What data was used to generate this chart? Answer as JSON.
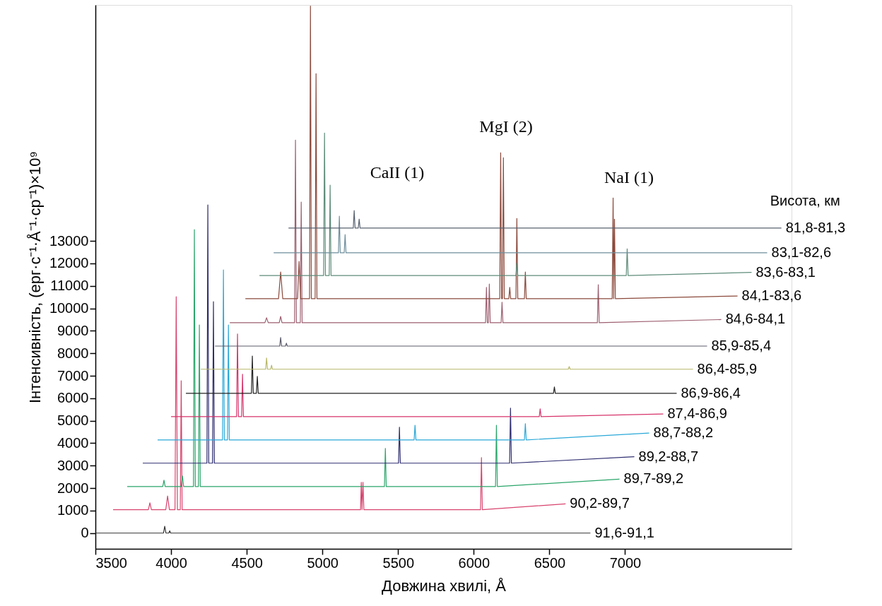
{
  "chart_data": {
    "type": "line",
    "xlabel": "Довжина хвилі, Å",
    "ylabel": "Інтенсивність, (ерг·с⁻¹·Å⁻¹·ср⁻¹)×10⁹",
    "legend_title": "Висота, км",
    "xlim": [
      3500,
      8100
    ],
    "xticks": [
      3500,
      4000,
      4500,
      5000,
      5500,
      6000,
      6500,
      7000
    ],
    "ylim": [
      -700,
      23500
    ],
    "yticks": [
      0,
      1000,
      2000,
      3000,
      4000,
      5000,
      6000,
      7000,
      8000,
      9000,
      10000,
      11000,
      12000,
      13000
    ],
    "grid": false,
    "marker": "none",
    "line_style": "solid",
    "annotations": [
      "CaII (1)",
      "MgI (2)",
      "NaI (1)"
    ],
    "series": [
      {
        "name": "91,6-91,1",
        "color": "#333333",
        "x": [
          3500,
          3950,
          3958,
          3966,
          3985,
          3991,
          3997,
          6771
        ],
        "values": [
          0,
          0,
          300,
          0,
          0,
          100,
          0,
          0
        ]
      },
      {
        "name": "90,2-89,7",
        "color": "#d8436e",
        "x": [
          3617,
          3850,
          3860,
          3870,
          3965,
          3977,
          3989,
          4026,
          4034,
          4042,
          4061,
          4067,
          4073,
          5252,
          5257,
          5262,
          5268,
          5274,
          6045,
          6051,
          6057,
          6607
        ],
        "values": [
          1040,
          1040,
          1350,
          1040,
          1040,
          1650,
          1040,
          1040,
          10520,
          1040,
          1040,
          6780,
          1040,
          1040,
          2260,
          1040,
          2260,
          1040,
          1040,
          3360,
          1040,
          1300
        ]
      },
      {
        "name": "89,7-89,2",
        "color": "#2aa56a",
        "x": [
          3710,
          3945,
          3953,
          3961,
          4067,
          4075,
          4083,
          4148,
          4154,
          4160,
          4181,
          4187,
          4193,
          5410,
          5416,
          5422,
          6144,
          6150,
          6156,
          6963
        ],
        "values": [
          2070,
          2070,
          2355,
          2070,
          2070,
          2540,
          2070,
          2070,
          13500,
          2070,
          2070,
          9260,
          2070,
          2070,
          3770,
          2070,
          2070,
          4800,
          2070,
          2400
        ]
      },
      {
        "name": "89,2-88,7",
        "color": "#2e2d70",
        "x": [
          3813,
          4237,
          4243,
          4249,
          4274,
          4280,
          4286,
          5503,
          5509,
          5515,
          6237,
          6243,
          6249,
          7061
        ],
        "values": [
          3110,
          3110,
          14600,
          3110,
          3110,
          10300,
          3110,
          3110,
          4710,
          3110,
          3110,
          5560,
          3110,
          3400
        ]
      },
      {
        "name": "88,7-88,2",
        "color": "#2aa8d8",
        "x": [
          3911,
          4340,
          4346,
          4352,
          4373,
          4379,
          4385,
          5606,
          5612,
          5618,
          6335,
          6341,
          6347,
          7159
        ],
        "values": [
          4145,
          4145,
          11710,
          4145,
          4145,
          9260,
          4145,
          4145,
          4800,
          4145,
          4145,
          4870,
          4145,
          4450
        ]
      },
      {
        "name": "87,4-86,9",
        "color": "#d6336b",
        "x": [
          4000,
          4433,
          4439,
          4445,
          4466,
          4472,
          4478,
          6433,
          6439,
          6445,
          7252
        ],
        "values": [
          5180,
          5180,
          8860,
          5180,
          5180,
          7070,
          5180,
          5180,
          5530,
          5180,
          5300
        ]
      },
      {
        "name": "86,9-86,4",
        "color": "#222222",
        "x": [
          4098,
          4531,
          4537,
          4543,
          4564,
          4570,
          4576,
          6527,
          6533,
          6539,
          7341
        ],
        "values": [
          6220,
          6220,
          7880,
          6220,
          6220,
          6970,
          6220,
          6220,
          6500,
          6220,
          6220
        ]
      },
      {
        "name": "86,4-85,9",
        "color": "#b8b86a",
        "x": [
          4196,
          4625,
          4631,
          4637,
          4658,
          4664,
          4670,
          6625,
          6631,
          6637,
          7449
        ],
        "values": [
          7290,
          7290,
          7790,
          7290,
          7290,
          7470,
          7290,
          7290,
          7410,
          7290,
          7290
        ]
      },
      {
        "name": "85,9-85,4",
        "color": "#5a5a6a",
        "x": [
          4290,
          4718,
          4724,
          4730,
          4756,
          4762,
          4768,
          7542
        ],
        "values": [
          8320,
          8320,
          8700,
          8320,
          8320,
          8450,
          8320,
          8320
        ]
      },
      {
        "name": "84,6-84,1",
        "color": "#9c5f70",
        "x": [
          4388,
          4620,
          4631,
          4642,
          4715,
          4724,
          4733,
          4816,
          4822,
          4828,
          4854,
          4860,
          4866,
          6078,
          6084,
          6090,
          6097,
          6103,
          6109,
          6181,
          6187,
          6193,
          6817,
          6823,
          6829,
          7636
        ],
        "values": [
          9360,
          9360,
          9580,
          9360,
          9360,
          9640,
          9360,
          9360,
          17490,
          9360,
          9360,
          14730,
          9360,
          9360,
          10930,
          9360,
          9360,
          11080,
          9360,
          9360,
          10270,
          9360,
          9360,
          11050,
          9360,
          9500
        ]
      },
      {
        "name": "84,1-83,6",
        "color": "#8b4a3c",
        "x": [
          4491,
          4710,
          4724,
          4738,
          4836,
          4846,
          4856,
          4915,
          4921,
          4927,
          4952,
          4958,
          4964,
          6172,
          6178,
          6184,
          6190,
          6196,
          6202,
          6232,
          6238,
          6244,
          6279,
          6285,
          6291,
          6335,
          6341,
          6347,
          6915,
          6921,
          6925,
          6930,
          6936,
          7743
        ],
        "values": [
          10430,
          10430,
          11620,
          10430,
          10430,
          12090,
          10430,
          10430,
          23450,
          10430,
          10430,
          20440,
          10430,
          10430,
          16920,
          10430,
          10430,
          16700,
          10430,
          10430,
          10930,
          10430,
          10430,
          14000,
          10430,
          10430,
          11620,
          10430,
          10430,
          14910,
          10430,
          13970,
          10430,
          10550
        ]
      },
      {
        "name": "83,6-83,1",
        "color": "#5e8c7a",
        "x": [
          4584,
          5008,
          5014,
          5020,
          5045,
          5051,
          5057,
          6279,
          6285,
          6291,
          7008,
          7014,
          7020,
          7836
        ],
        "values": [
          11460,
          11460,
          17800,
          11460,
          11460,
          15480,
          11460,
          11460,
          12000,
          11460,
          11460,
          12650,
          11460,
          11600
        ]
      },
      {
        "name": "83,1-82,6",
        "color": "#6d8e9c",
        "x": [
          4678,
          5106,
          5112,
          5118,
          5144,
          5150,
          5156,
          7939
        ],
        "values": [
          12470,
          12470,
          14100,
          12470,
          12470,
          13280,
          12470,
          12470
        ]
      },
      {
        "name": "81,8-81,3",
        "color": "#586270",
        "x": [
          4776,
          5204,
          5210,
          5216,
          5237,
          5243,
          5249,
          8033
        ],
        "values": [
          13570,
          13570,
          14350,
          13570,
          13570,
          13970,
          13570,
          13570
        ]
      }
    ]
  }
}
